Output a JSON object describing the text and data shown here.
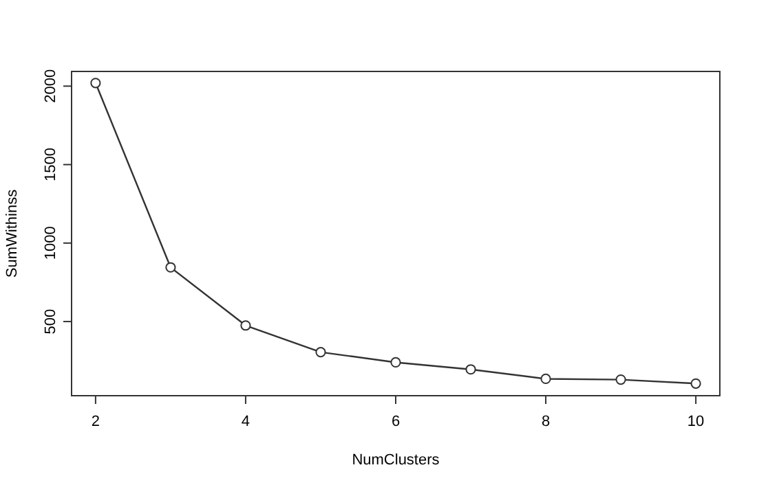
{
  "chart_data": {
    "type": "line",
    "xlabel": "NumClusters",
    "ylabel": "SumWithinss",
    "x": [
      2,
      3,
      4,
      5,
      6,
      7,
      8,
      9,
      10
    ],
    "series": [
      {
        "color": "#333333",
        "values": [
          2020,
          845,
          475,
          305,
          240,
          195,
          135,
          130,
          105
        ]
      }
    ],
    "xlim": [
      1.68,
      10.32
    ],
    "ylim": [
      27.5,
      2093.5
    ],
    "xticks": [
      2,
      4,
      6,
      8,
      10
    ],
    "yticks": [
      500,
      1000,
      1500,
      2000
    ],
    "grid": false,
    "marker": "circle",
    "line_style": "solid"
  }
}
